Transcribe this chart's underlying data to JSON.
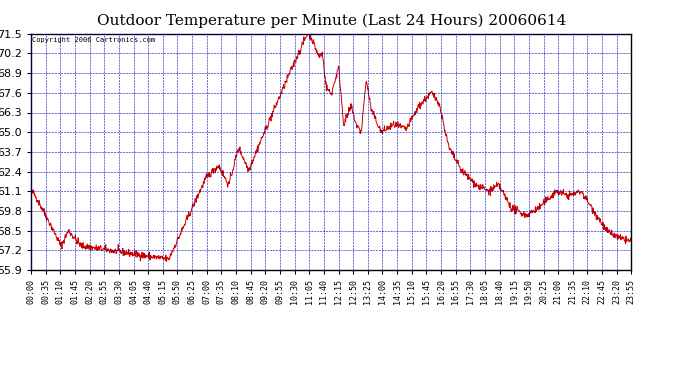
{
  "title": "Outdoor Temperature per Minute (Last 24 Hours) 20060614",
  "copyright_text": "Copyright 2006 Cartronics.com",
  "line_color": "#cc0000",
  "background_color": "#ffffff",
  "grid_color": "#0000bb",
  "tick_label_color": "#000000",
  "title_color": "#000000",
  "y_ticks": [
    55.9,
    57.2,
    58.5,
    59.8,
    61.1,
    62.4,
    63.7,
    65.0,
    66.3,
    67.6,
    68.9,
    70.2,
    71.5
  ],
  "ylim": [
    55.9,
    71.5
  ],
  "x_tick_labels": [
    "00:00",
    "00:35",
    "01:10",
    "01:45",
    "02:20",
    "02:55",
    "03:30",
    "04:05",
    "04:40",
    "05:15",
    "05:50",
    "06:25",
    "07:00",
    "07:35",
    "08:10",
    "08:45",
    "09:20",
    "09:55",
    "10:30",
    "11:05",
    "11:40",
    "12:15",
    "12:50",
    "13:25",
    "14:00",
    "14:35",
    "15:10",
    "15:45",
    "16:20",
    "16:55",
    "17:30",
    "18:05",
    "18:40",
    "19:15",
    "19:50",
    "20:25",
    "21:00",
    "21:35",
    "22:10",
    "22:45",
    "23:20",
    "23:55"
  ],
  "num_minutes": 1440,
  "title_fontsize": 11,
  "ytick_fontsize": 8,
  "xtick_fontsize": 6
}
